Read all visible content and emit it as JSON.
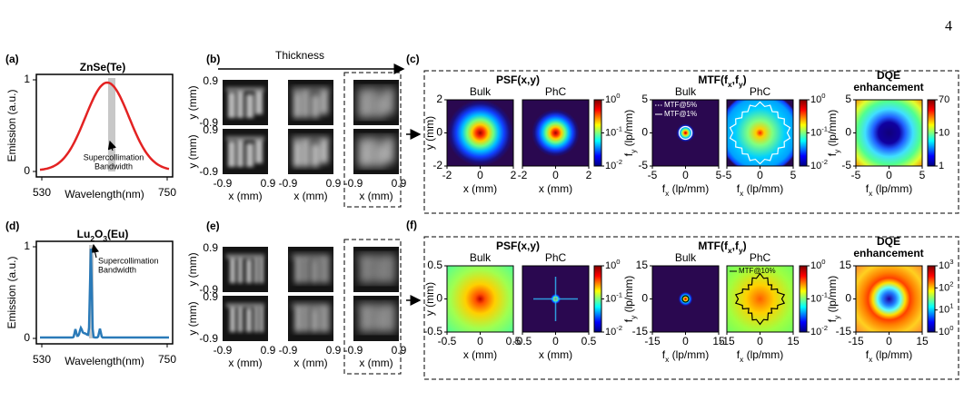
{
  "page_number": "4",
  "panels": {
    "a": {
      "label": "(a)",
      "title": [
        "ZnSe(Te)"
      ],
      "y_label": "Emission (a.u.)",
      "y_ticks": [
        "1",
        "0"
      ],
      "x_ticks": [
        "530",
        "750"
      ],
      "x_label": "Wavelength(nm)",
      "annotation": [
        "Supercollimation",
        "Bandwidth"
      ]
    },
    "b": {
      "label": "(b)",
      "arrow_label": "Thickness",
      "y_ticks": [
        "0.9",
        "-0.9"
      ],
      "y_label": "y (mm)",
      "x_ticks": [
        "-0.9",
        "0.9"
      ],
      "x_label": "x (mm)"
    },
    "c": {
      "label": "(c)",
      "psf_title": "PSF(x,y)",
      "mtf_title": [
        "MTF(f",
        "x",
        ",f",
        "y",
        ")"
      ],
      "dqe_title": [
        "DQE",
        "enhancement"
      ],
      "sub_titles": [
        "Bulk",
        "PhC",
        "Bulk",
        "PhC"
      ],
      "psf_ticks": [
        "-2",
        "0",
        "2"
      ],
      "psf_yticks": [
        "2",
        "0",
        "-2"
      ],
      "mtf_ticks": [
        "-5",
        "0",
        "5"
      ],
      "dqe_ticks": [
        "-5",
        "0",
        "5"
      ],
      "cbar_ticks": [
        [
          "10",
          "0"
        ],
        [
          "10",
          "-1"
        ],
        [
          "10",
          "-2"
        ]
      ],
      "dqe_cbar_ticks": [
        [
          "70"
        ],
        [
          "10"
        ],
        [
          "1"
        ]
      ],
      "x_label": "x (mm)",
      "y_label": "y (mm)",
      "fx_label": [
        "f",
        "x",
        " (lp/mm)"
      ],
      "fy_label": [
        "f",
        "y",
        " (lp/mm)"
      ],
      "legend": [
        "MTF@5%",
        "MTF@1%"
      ]
    },
    "d": {
      "label": "(d)",
      "title": [
        "Lu",
        "2",
        "O",
        "3",
        "(Eu)"
      ],
      "y_label": "Emission (a.u.)",
      "y_ticks": [
        "1",
        "0"
      ],
      "x_ticks": [
        "530",
        "750"
      ],
      "x_label": "Wavelength(nm)",
      "annotation": [
        "Supercollimation",
        "Bandwidth"
      ]
    },
    "e": {
      "label": "(e)",
      "y_ticks": [
        "0.9",
        "-0.9"
      ],
      "y_label": "y (mm)",
      "x_ticks": [
        "-0.9",
        "0.9"
      ],
      "x_label": "x (mm)"
    },
    "f": {
      "label": "(f)",
      "psf_title": "PSF(x,y)",
      "mtf_title": [
        "MTF(f",
        "x",
        ",f",
        "y",
        ")"
      ],
      "dqe_title": [
        "DQE",
        "enhancement"
      ],
      "sub_titles": [
        "Bulk",
        "PhC",
        "Bulk",
        "PhC"
      ],
      "psf_ticks": [
        "-0.5",
        "0",
        "0.5"
      ],
      "psf_yticks": [
        "0.5",
        "0",
        "-0.5"
      ],
      "mtf_ticks": [
        "-15",
        "0",
        "15"
      ],
      "dqe_ticks": [
        "-15",
        "0",
        "15"
      ],
      "cbar_ticks": [
        [
          "10",
          "0"
        ],
        [
          "10",
          "-1"
        ],
        [
          "10",
          "-2"
        ]
      ],
      "dqe_cbar_ticks": [
        [
          "10",
          "3"
        ],
        [
          "10",
          "2"
        ],
        [
          "10",
          "1"
        ],
        [
          "10",
          "0"
        ]
      ],
      "x_label": "x (mm)",
      "y_label": "y (mm)",
      "fx_label": [
        "f",
        "x",
        " (lp/mm)"
      ],
      "fy_label": [
        "f",
        "y",
        " (lp/mm)"
      ],
      "legend": [
        "MTF@10%"
      ]
    }
  }
}
